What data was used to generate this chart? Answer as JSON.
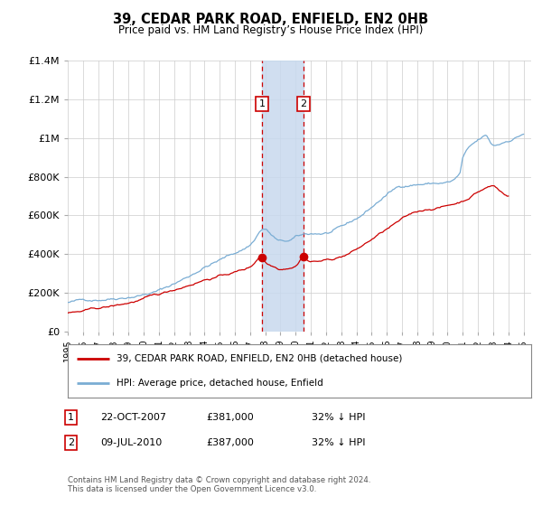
{
  "title": "39, CEDAR PARK ROAD, ENFIELD, EN2 0HB",
  "subtitle": "Price paid vs. HM Land Registry’s House Price Index (HPI)",
  "footer": "Contains HM Land Registry data © Crown copyright and database right 2024.\nThis data is licensed under the Open Government Licence v3.0.",
  "legend_line1": "39, CEDAR PARK ROAD, ENFIELD, EN2 0HB (detached house)",
  "legend_line2": "HPI: Average price, detached house, Enfield",
  "transactions": [
    {
      "label": "1",
      "date": "22-OCT-2007",
      "price": "£381,000",
      "hpi_diff": "32% ↓ HPI",
      "year": 2007.8
    },
    {
      "label": "2",
      "date": "09-JUL-2010",
      "price": "£387,000",
      "hpi_diff": "32% ↓ HPI",
      "year": 2010.5
    }
  ],
  "transaction1_value": 381000,
  "transaction2_value": 387000,
  "shade_color": "#c8d9ee",
  "red_color": "#cc0000",
  "blue_color": "#7aadd4",
  "ylim_max": 1400000,
  "xlim_start": 1995,
  "xlim_end": 2025.5,
  "background_color": "#ffffff",
  "grid_color": "#cccccc"
}
